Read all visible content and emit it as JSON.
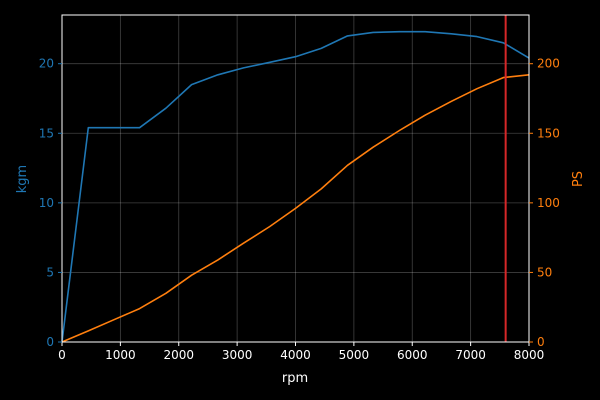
{
  "chart_data": {
    "type": "line",
    "xlabel": "rpm",
    "ylabel_left": "kgm",
    "ylabel_right": "PS",
    "xlim": [
      0,
      8000
    ],
    "ylim_left": [
      0,
      23.5
    ],
    "ylim_right": [
      0,
      235
    ],
    "grid": true,
    "x_ticks": [
      0,
      1000,
      2000,
      3000,
      4000,
      5000,
      6000,
      7000,
      8000
    ],
    "y_left_ticks": [
      0,
      5,
      10,
      15,
      20
    ],
    "y_right_ticks": [
      0,
      50,
      100,
      150,
      200
    ],
    "vline_x": 7600,
    "series": [
      {
        "axis": "left",
        "color": "#1f77b4",
        "x": [
          0,
          450,
          1000,
          1330,
          1780,
          2220,
          2670,
          3110,
          3560,
          4000,
          4440,
          4890,
          5330,
          5780,
          6220,
          6670,
          7110,
          7560,
          8000
        ],
        "y": [
          0,
          15.4,
          15.4,
          15.4,
          16.8,
          18.5,
          19.2,
          19.7,
          20.1,
          20.5,
          21.1,
          22.0,
          22.25,
          22.3,
          22.3,
          22.15,
          21.95,
          21.5,
          20.4
        ]
      },
      {
        "axis": "right",
        "color": "#ff7f0e",
        "x": [
          0,
          450,
          890,
          1330,
          1780,
          2220,
          2670,
          3110,
          3560,
          4000,
          4440,
          4890,
          5330,
          5780,
          6220,
          6670,
          7110,
          7560,
          8000
        ],
        "y": [
          0,
          8,
          16,
          24,
          35,
          48,
          59,
          71,
          83,
          96,
          110,
          127,
          140,
          152,
          163,
          173,
          182,
          190,
          192
        ]
      }
    ]
  }
}
